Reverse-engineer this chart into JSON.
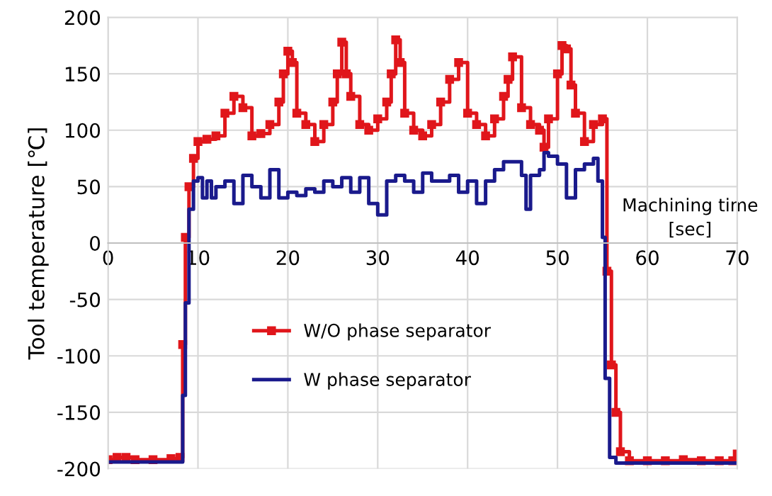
{
  "chart_data": {
    "type": "step",
    "xlabel": "Machining time\n[sec]",
    "ylabel": "Tool temperature [℃]",
    "xlim": [
      0,
      70
    ],
    "xticks": [
      0,
      10,
      20,
      30,
      40,
      50,
      60,
      70
    ],
    "ylim": [
      -200,
      200
    ],
    "yticks": [
      -200,
      -150,
      -100,
      -50,
      0,
      50,
      100,
      150,
      200
    ],
    "grid": true,
    "legend": "bottom",
    "line_style": "solid",
    "series": [
      {
        "name": "W/O phase separator",
        "color": "#e0161b",
        "marker": "square",
        "x": [
          0,
          1,
          2,
          3,
          5,
          7,
          8,
          8.3,
          8.6,
          9,
          9.5,
          10,
          11,
          12,
          13,
          14,
          15,
          16,
          17,
          18,
          19,
          19.5,
          20,
          20.5,
          21,
          22,
          23,
          24,
          25,
          25.5,
          26,
          26.5,
          27,
          28,
          29,
          30,
          31,
          31.5,
          32,
          32.5,
          33,
          34,
          35,
          36,
          37,
          38,
          39,
          40,
          41,
          42,
          43,
          44,
          44.5,
          45,
          46,
          47,
          48,
          48.5,
          49,
          50,
          50.5,
          51,
          51.5,
          52,
          53,
          54,
          55,
          55.5,
          56,
          56.5,
          57,
          58,
          60,
          62,
          64,
          66,
          68,
          69.5,
          70
        ],
        "values": [
          -192,
          -190,
          -190,
          -192,
          -192,
          -191,
          -190,
          -90,
          5,
          50,
          75,
          90,
          92,
          95,
          115,
          130,
          120,
          95,
          97,
          105,
          125,
          150,
          170,
          160,
          115,
          105,
          90,
          105,
          125,
          150,
          178,
          150,
          130,
          105,
          100,
          110,
          125,
          150,
          180,
          160,
          115,
          100,
          95,
          105,
          125,
          145,
          160,
          115,
          105,
          95,
          110,
          130,
          145,
          165,
          120,
          105,
          100,
          85,
          110,
          150,
          175,
          172,
          140,
          115,
          90,
          105,
          110,
          -25,
          -108,
          -150,
          -185,
          -193,
          -193,
          -193,
          -192,
          -193,
          -193,
          -193,
          -187
        ]
      },
      {
        "name": "W phase separator",
        "color": "#1a1a8c",
        "marker": "none",
        "x": [
          0,
          8,
          8.3,
          8.6,
          9,
          9.5,
          10,
          10.5,
          11,
          11.5,
          12,
          13,
          14,
          15,
          16,
          17,
          18,
          19,
          20,
          21,
          22,
          23,
          24,
          25,
          26,
          27,
          28,
          29,
          30,
          31,
          32,
          33,
          34,
          35,
          36,
          37,
          38,
          39,
          40,
          41,
          42,
          43,
          44,
          45,
          46,
          46.5,
          47,
          48,
          48.5,
          49,
          50,
          51,
          52,
          53,
          54,
          54.5,
          55,
          55.3,
          55.8,
          56.5,
          70
        ],
        "values": [
          -194,
          -194,
          -135,
          -53,
          30,
          55,
          58,
          40,
          55,
          40,
          50,
          55,
          35,
          60,
          50,
          40,
          65,
          40,
          45,
          42,
          48,
          45,
          55,
          50,
          58,
          45,
          58,
          35,
          25,
          55,
          60,
          55,
          45,
          62,
          55,
          55,
          60,
          45,
          55,
          35,
          55,
          65,
          72,
          72,
          60,
          30,
          60,
          65,
          80,
          77,
          70,
          40,
          65,
          70,
          75,
          55,
          5,
          -120,
          -190,
          -195,
          -195
        ]
      }
    ]
  }
}
